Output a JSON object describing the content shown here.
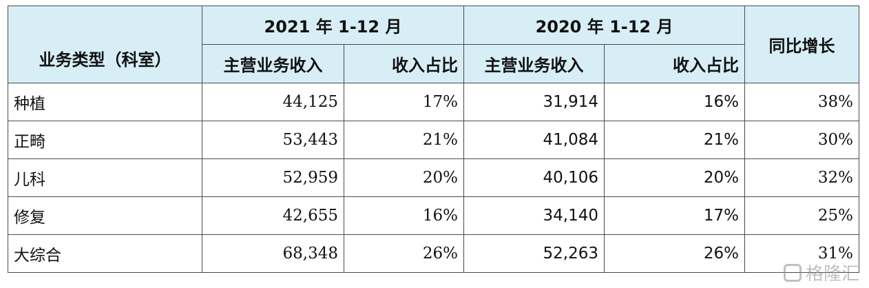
{
  "table": {
    "header": {
      "category": "业务类型（科室）",
      "year2021": "2021 年 1-12 月",
      "year2020": "2020 年 1-12 月",
      "yoy": "同比增长",
      "revenue": "主营业务收入",
      "share": "收入占比"
    },
    "rows": [
      {
        "category": "种植",
        "rev2021": "44,125",
        "share2021": "17%",
        "rev2020": "31,914",
        "share2020": "16%",
        "yoy": "38%"
      },
      {
        "category": "正畸",
        "rev2021": "53,443",
        "share2021": "21%",
        "rev2020": "41,084",
        "share2020": "21%",
        "yoy": "30%"
      },
      {
        "category": "儿科",
        "rev2021": "52,959",
        "share2021": "20%",
        "rev2020": "40,106",
        "share2020": "20%",
        "yoy": "32%"
      },
      {
        "category": "修复",
        "rev2021": "42,655",
        "share2021": "16%",
        "rev2020": "34,140",
        "share2020": "17%",
        "yoy": "25%"
      },
      {
        "category": "大综合",
        "rev2021": "68,348",
        "share2021": "26%",
        "rev2020": "52,263",
        "share2020": "26%",
        "yoy": "31%"
      }
    ]
  },
  "watermark": {
    "text": "格隆汇",
    "icon": "logo-icon"
  }
}
